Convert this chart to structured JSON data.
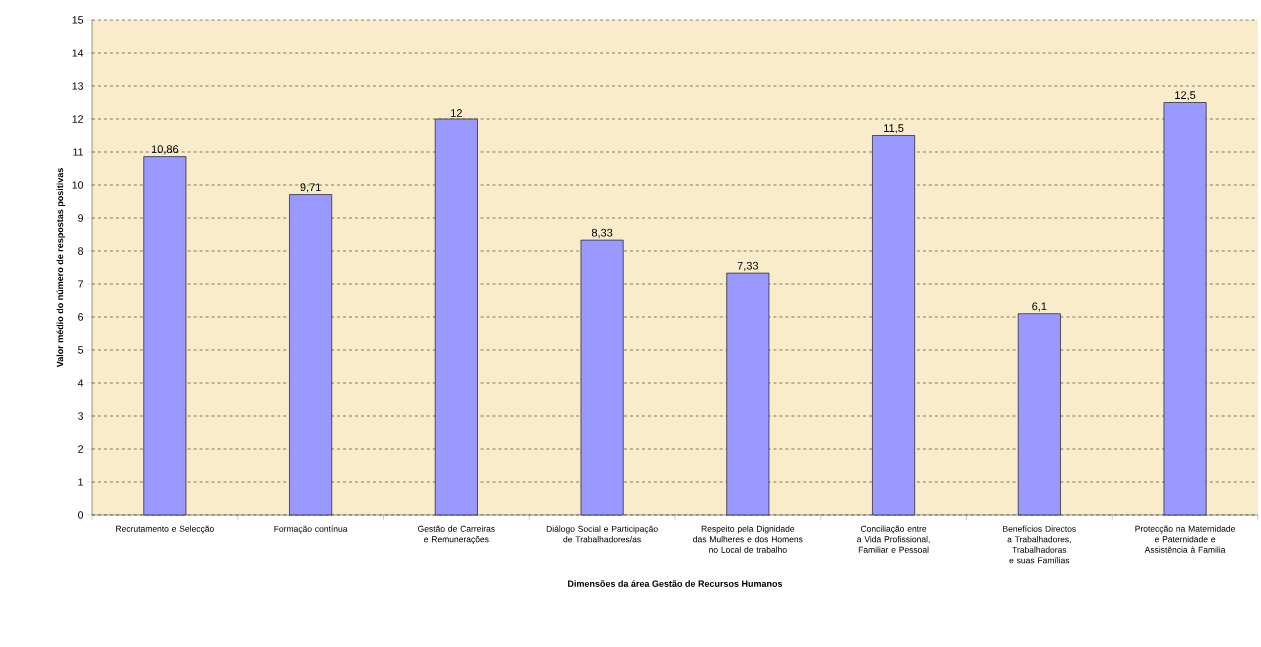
{
  "chart_data": {
    "type": "bar",
    "xlabel": "Dimensões da área Gestão de Recursos Humanos",
    "ylabel": "Valor médio do número de respostas positivas",
    "categories": [
      "Recrutamento e Selecção",
      "Formação contínua",
      "Gestão de Carreiras e Remunerações",
      "Diálogo Social e Participação de Trabalhadores/as",
      "Respeito pela Dignidade das Mulheres e dos Homens no Local de trabalho",
      "Conciliação entre a Vida Profissional, Familiar e Pessoal",
      "Benefícios Directos a Trabalhadores, Trabalhadoras e suas Famílias",
      "Protecção na Maternidade e Paternidade e Assistência à Familia"
    ],
    "values": [
      10.86,
      9.71,
      12,
      8.33,
      7.33,
      11.5,
      6.1,
      12.5
    ],
    "value_labels": [
      "10,86",
      "9,71",
      "12",
      "8,33",
      "7,33",
      "11,5",
      "6,1",
      "12,5"
    ],
    "color": "#9999ff",
    "ylim": [
      0,
      15
    ],
    "yticks": [
      0,
      1,
      2,
      3,
      4,
      5,
      6,
      7,
      8,
      9,
      10,
      11,
      12,
      13,
      14,
      15
    ],
    "grid": "y"
  }
}
